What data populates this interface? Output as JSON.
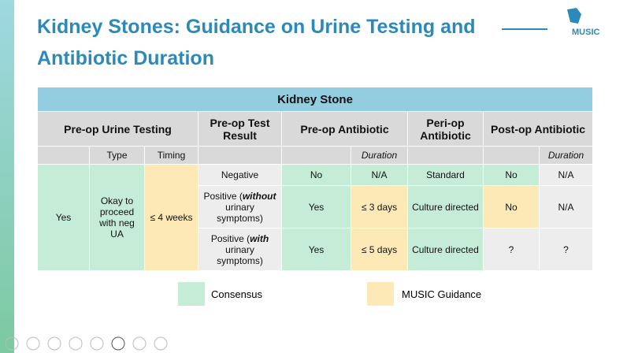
{
  "header": {
    "title": "Kidney Stones: Guidance on Urine Testing and Antibiotic Duration",
    "logo": "MUSIC"
  },
  "table": {
    "caption": "Kidney Stone",
    "groups": [
      "Pre-op Urine Testing",
      "Pre-op Test Result",
      "Pre-op Antibiotic",
      "Peri-op Antibiotic",
      "Post-op Antibiotic"
    ],
    "subheaders": {
      "type": "Type",
      "timing": "Timing",
      "pre_duration": "Duration",
      "post_duration": "Duration"
    },
    "shared": {
      "testing": "Yes",
      "type": "Okay to proceed with neg UA",
      "timing": "≤ 4 weeks"
    },
    "rows": [
      {
        "result": {
          "text": "Negative"
        },
        "pre_abx": "No",
        "pre_duration": "N/A",
        "peri": "Standard",
        "post_abx": "No",
        "post_duration": "N/A"
      },
      {
        "result": {
          "before": "Positive (",
          "emph": "without",
          "after": " urinary symptoms)"
        },
        "pre_abx": "Yes",
        "pre_duration": "≤ 3 days",
        "peri": "Culture directed",
        "post_abx": "No",
        "post_duration": "N/A"
      },
      {
        "result": {
          "before": "Positive (",
          "emph": "with",
          "after": " urinary symptoms)"
        },
        "pre_abx": "Yes",
        "pre_duration": "≤ 5 days",
        "peri": "Culture directed",
        "post_abx": "?",
        "post_duration": "?"
      }
    ]
  },
  "legend": [
    "Consensus",
    "MUSIC Guidance"
  ]
}
